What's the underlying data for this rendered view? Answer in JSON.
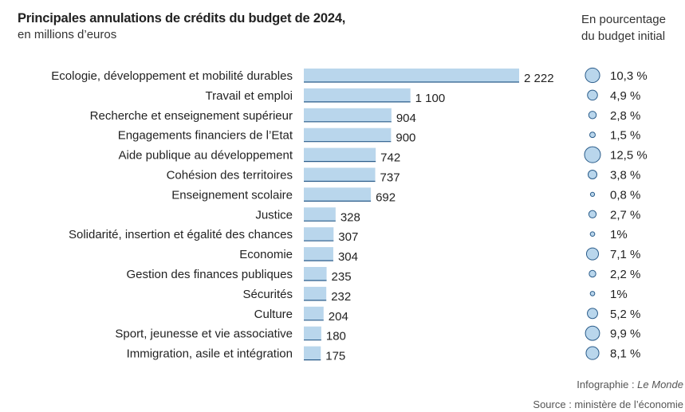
{
  "header": {
    "title": "Principales annulations de crédits du budget de 2024,",
    "subtitle": "en millions d’euros",
    "pct_heading_line1": "En pourcentage",
    "pct_heading_line2": "du budget initial"
  },
  "footer": {
    "credit_prefix": "Infographie : ",
    "credit_name": "Le Monde",
    "source": "Source : ministère de l’économie"
  },
  "colors": {
    "bar_fill": "#b9d6ec",
    "bar_stroke": "#2a5c8a",
    "circle_fill": "#b9d6ec",
    "circle_stroke": "#2a5c8a"
  },
  "chart_data": {
    "type": "bar",
    "orientation": "horizontal",
    "categories": [
      "Ecologie, développement et mobilité durables",
      "Travail et emploi",
      "Recherche et enseignement supérieur",
      "Engagements financiers de l’Etat",
      "Aide publique au développement",
      "Cohésion des territoires",
      "Enseignement scolaire",
      "Justice",
      "Solidarité, insertion et égalité des chances",
      "Economie",
      "Gestion des finances publiques",
      "Sécurités",
      "Culture",
      "Sport, jeunesse et vie associative",
      "Immigration, asile et intégration"
    ],
    "values": [
      2222,
      1100,
      904,
      900,
      742,
      737,
      692,
      328,
      307,
      304,
      235,
      232,
      204,
      180,
      175
    ],
    "value_labels": [
      "2 222",
      "1 100",
      "904",
      "900",
      "742",
      "737",
      "692",
      "328",
      "307",
      "304",
      "235",
      "232",
      "204",
      "180",
      "175"
    ],
    "percent_values": [
      10.3,
      4.9,
      2.8,
      1.5,
      12.5,
      3.8,
      0.8,
      2.7,
      1,
      7.1,
      2.2,
      1,
      5.2,
      9.9,
      8.1
    ],
    "percent_labels": [
      "10,3 %",
      "4,9 %",
      "2,8 %",
      "1,5 %",
      "12,5 %",
      "3,8 %",
      "0,8 %",
      "2,7 %",
      "1%",
      "7,1 %",
      "2,2 %",
      "1%",
      "5,2 %",
      "9,9 %",
      "8,1 %"
    ],
    "xlim": [
      0,
      2222
    ],
    "grid": false
  }
}
